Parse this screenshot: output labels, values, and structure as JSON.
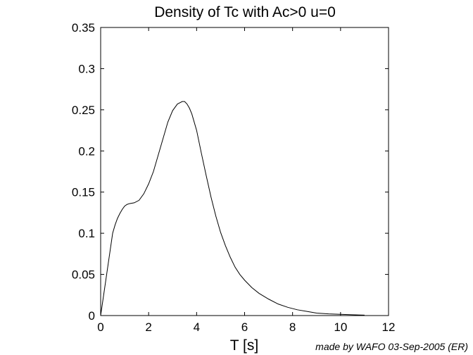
{
  "chart_data": {
    "type": "line",
    "title": "Density of Tc with Ac>0  u=0",
    "xlabel": "T [s]",
    "ylabel": "",
    "footer": "made by WAFO 03-Sep-2005 (ER)",
    "xlim": [
      0,
      12
    ],
    "ylim": [
      0,
      0.35
    ],
    "xticks": [
      0,
      2,
      4,
      6,
      8,
      10,
      12
    ],
    "xtick_labels": [
      "0",
      "2",
      "4",
      "6",
      "8",
      "10",
      "12"
    ],
    "yticks": [
      0,
      0.05,
      0.1,
      0.15,
      0.2,
      0.25,
      0.3,
      0.35
    ],
    "ytick_labels": [
      "0",
      "0.05",
      "0.1",
      "0.15",
      "0.2",
      "0.25",
      "0.3",
      "0.35"
    ],
    "grid": false,
    "line_color": "#000000",
    "series": [
      {
        "x": [
          0,
          0.1,
          0.2,
          0.3,
          0.4,
          0.5,
          0.6,
          0.7,
          0.8,
          0.9,
          1.0,
          1.1,
          1.2,
          1.4,
          1.6,
          1.8,
          2.0,
          2.2,
          2.4,
          2.6,
          2.8,
          3.0,
          3.2,
          3.4,
          3.5,
          3.6,
          3.7,
          3.8,
          4.0,
          4.2,
          4.4,
          4.6,
          4.8,
          5.0,
          5.2,
          5.4,
          5.6,
          5.8,
          6.0,
          6.3,
          6.6,
          7.0,
          7.4,
          7.8,
          8.2,
          8.6,
          9.0,
          9.5,
          10.0,
          10.5,
          11.0
        ],
        "y": [
          0,
          0.02,
          0.04,
          0.06,
          0.08,
          0.1,
          0.11,
          0.118,
          0.124,
          0.129,
          0.133,
          0.135,
          0.136,
          0.137,
          0.14,
          0.148,
          0.16,
          0.175,
          0.195,
          0.215,
          0.235,
          0.249,
          0.257,
          0.26,
          0.26,
          0.257,
          0.252,
          0.245,
          0.225,
          0.197,
          0.17,
          0.144,
          0.121,
          0.101,
          0.085,
          0.071,
          0.059,
          0.05,
          0.043,
          0.034,
          0.027,
          0.02,
          0.014,
          0.01,
          0.007,
          0.005,
          0.003,
          0.002,
          0.0015,
          0.001,
          0.0005
        ]
      }
    ]
  }
}
